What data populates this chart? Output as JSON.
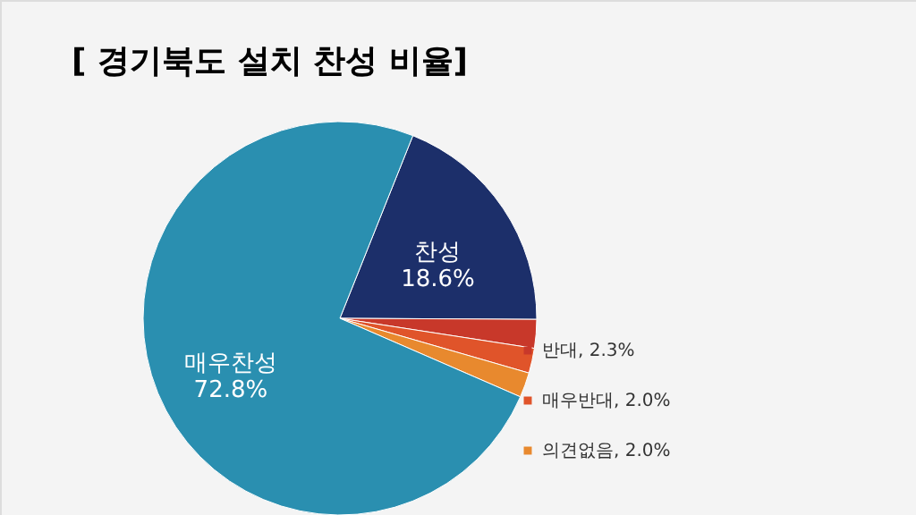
{
  "chart_data": {
    "type": "pie",
    "title": "[ 경기북도 설치 찬성 비율]",
    "categories": [
      "찬성",
      "반대",
      "매우반대",
      "의견없음",
      "매우찬성"
    ],
    "values": [
      18.6,
      2.3,
      2.0,
      2.0,
      72.8
    ],
    "value_labels": [
      "18.6%",
      "2.3%",
      "2.0%",
      "2.0%",
      "72.8%"
    ],
    "colors": [
      "#1c2f6a",
      "#c8382a",
      "#e0542a",
      "#e8892e",
      "#2a8fb0"
    ],
    "legend": "right"
  }
}
